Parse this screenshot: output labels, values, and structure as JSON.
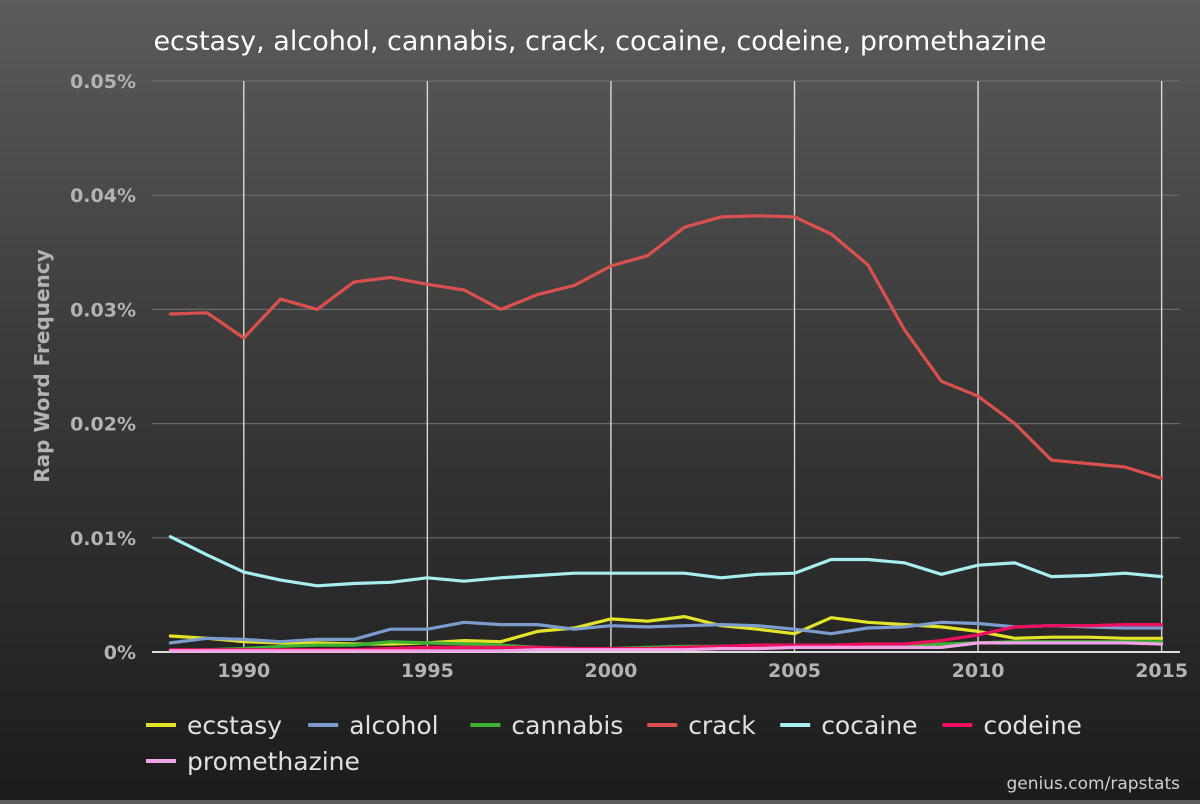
{
  "source_note": "genius.com/rapstats",
  "chart_data": {
    "type": "line",
    "title": "ecstasy, alcohol, cannabis, crack, cocaine, codeine, promethazine",
    "xlabel": "",
    "ylabel": "Rap Word Frequency",
    "x": [
      1988,
      1989,
      1990,
      1991,
      1992,
      1993,
      1994,
      1995,
      1996,
      1997,
      1998,
      1999,
      2000,
      2001,
      2002,
      2003,
      2004,
      2005,
      2006,
      2007,
      2008,
      2009,
      2010,
      2011,
      2012,
      2013,
      2014,
      2015
    ],
    "xlim": [
      1987.5,
      2015.5
    ],
    "ylim": [
      0,
      0.05
    ],
    "x_ticks": [
      1990,
      1995,
      2000,
      2005,
      2010,
      2015
    ],
    "x_tick_labels": [
      "1990",
      "1995",
      "2000",
      "2005",
      "2010",
      "2015"
    ],
    "y_ticks": [
      0,
      0.01,
      0.02,
      0.03,
      0.04,
      0.05
    ],
    "y_tick_labels": [
      "0%",
      "0.01%",
      "0.02%",
      "0.03%",
      "0.04%",
      "0.05%"
    ],
    "grid": {
      "horizontal": true,
      "vertical": true
    },
    "legend_position": "bottom-left",
    "series": [
      {
        "name": "ecstasy",
        "color": "#e3e32a",
        "values": [
          0.0014,
          0.0012,
          0.0009,
          0.0008,
          0.0008,
          0.0007,
          0.0007,
          0.0008,
          0.001,
          0.0009,
          0.0018,
          0.0021,
          0.0029,
          0.0027,
          0.0031,
          0.0023,
          0.002,
          0.0016,
          0.003,
          0.0026,
          0.0024,
          0.0022,
          0.0018,
          0.0012,
          0.0013,
          0.0013,
          0.0012,
          0.0012
        ]
      },
      {
        "name": "alcohol",
        "color": "#7b9ccc",
        "values": [
          0.0008,
          0.0012,
          0.0011,
          0.0009,
          0.0011,
          0.0011,
          0.002,
          0.002,
          0.0026,
          0.0024,
          0.0024,
          0.002,
          0.0023,
          0.0022,
          0.0023,
          0.0024,
          0.0023,
          0.002,
          0.0016,
          0.0021,
          0.0022,
          0.0026,
          0.0025,
          0.0022,
          0.0023,
          0.0022,
          0.0021,
          0.0021
        ]
      },
      {
        "name": "cannabis",
        "color": "#3cb133",
        "values": [
          0.0001,
          0.0002,
          0.0003,
          0.0005,
          0.0006,
          0.0006,
          0.0009,
          0.0008,
          0.0007,
          0.0006,
          0.0004,
          0.0003,
          0.0003,
          0.0004,
          0.0005,
          0.0005,
          0.0005,
          0.0006,
          0.0006,
          0.0006,
          0.0006,
          0.0007,
          0.0008,
          0.0009,
          0.0009,
          0.0009,
          0.0009,
          0.0009
        ]
      },
      {
        "name": "crack",
        "color": "#d9504f",
        "values": [
          0.0296,
          0.0297,
          0.0275,
          0.0309,
          0.03,
          0.0324,
          0.0328,
          0.0322,
          0.0317,
          0.03,
          0.0313,
          0.0321,
          0.0338,
          0.0347,
          0.0372,
          0.0381,
          0.0382,
          0.0381,
          0.0366,
          0.0339,
          0.0282,
          0.0237,
          0.0224,
          0.02,
          0.0168,
          0.0165,
          0.0162,
          0.0152
        ]
      },
      {
        "name": "cocaine",
        "color": "#a9eeee",
        "values": [
          0.0101,
          0.0085,
          0.007,
          0.0063,
          0.0058,
          0.006,
          0.0061,
          0.0065,
          0.0062,
          0.0065,
          0.0067,
          0.0069,
          0.0069,
          0.0069,
          0.0069,
          0.0065,
          0.0068,
          0.0069,
          0.0081,
          0.0081,
          0.0078,
          0.0068,
          0.0076,
          0.0078,
          0.0066,
          0.0067,
          0.0069,
          0.0066
        ]
      },
      {
        "name": "codeine",
        "color": "#ef0f61",
        "values": [
          0.0002,
          0.0002,
          0.0002,
          0.0002,
          0.0002,
          0.0002,
          0.0003,
          0.0004,
          0.0004,
          0.0004,
          0.0004,
          0.0003,
          0.0003,
          0.0003,
          0.0004,
          0.0005,
          0.0006,
          0.0006,
          0.0006,
          0.0007,
          0.0007,
          0.001,
          0.0015,
          0.0022,
          0.0023,
          0.0023,
          0.0024,
          0.0024
        ]
      },
      {
        "name": "promethazine",
        "color": "#f0a3e8",
        "values": [
          0.0001,
          0.0001,
          0.0001,
          0.0001,
          0.0001,
          0.0001,
          0.0001,
          0.0001,
          0.0001,
          0.0001,
          0.0002,
          0.0002,
          0.0002,
          0.0002,
          0.0002,
          0.0003,
          0.0003,
          0.0004,
          0.0004,
          0.0004,
          0.0004,
          0.0004,
          0.0008,
          0.0008,
          0.0008,
          0.0008,
          0.0008,
          0.0007
        ]
      }
    ]
  }
}
